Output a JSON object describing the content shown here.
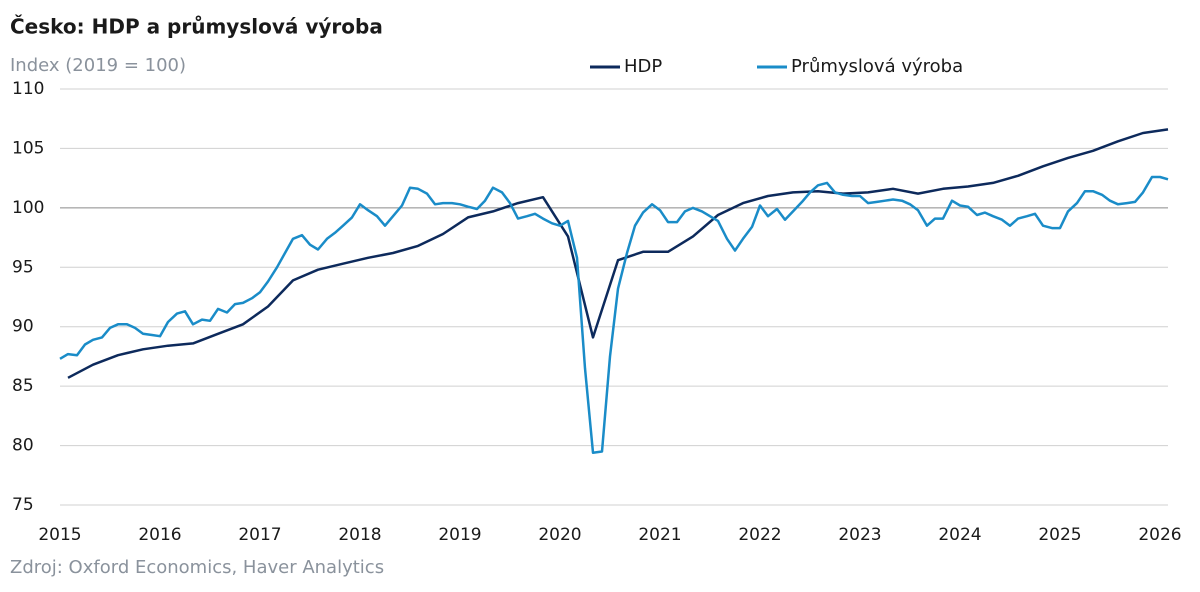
{
  "chart_data": {
    "type": "line",
    "title": "Česko: HDP a průmyslová výroba",
    "subtitle": "Index (2019 = 100)",
    "source": "Zdroj: Oxford Economics, Haver Analytics",
    "xlim": [
      2015,
      2026.08
    ],
    "xticks": [
      2015,
      2016,
      2017,
      2018,
      2019,
      2020,
      2021,
      2022,
      2023,
      2024,
      2025,
      2026
    ],
    "ylim": [
      75,
      110
    ],
    "yticks": [
      75,
      80,
      85,
      90,
      95,
      100,
      105,
      110
    ],
    "grid": true,
    "legend": "top",
    "series": [
      {
        "name": "HDP",
        "color": "#0d2a5c",
        "x": [
          2015.08,
          2015.33,
          2015.58,
          2015.83,
          2016.08,
          2016.33,
          2016.58,
          2016.83,
          2017.08,
          2017.33,
          2017.58,
          2017.83,
          2018.08,
          2018.33,
          2018.58,
          2018.83,
          2019.08,
          2019.33,
          2019.58,
          2019.83,
          2020.08,
          2020.33,
          2020.58,
          2020.83,
          2021.08,
          2021.33,
          2021.58,
          2021.83,
          2022.08,
          2022.33,
          2022.58,
          2022.83,
          2023.08,
          2023.33,
          2023.58,
          2023.83,
          2024.08,
          2024.33,
          2024.58,
          2024.83,
          2025.08,
          2025.33,
          2025.58,
          2025.83,
          2026.08
        ],
        "values": [
          85.7,
          86.8,
          87.6,
          88.1,
          88.4,
          88.6,
          89.4,
          90.2,
          91.7,
          93.9,
          94.8,
          95.3,
          95.8,
          96.2,
          96.8,
          97.8,
          99.2,
          99.7,
          100.4,
          100.9,
          97.6,
          89.1,
          95.6,
          96.3,
          96.3,
          97.6,
          99.4,
          100.4,
          101.0,
          101.3,
          101.4,
          101.2,
          101.3,
          101.6,
          101.2,
          101.6,
          101.8,
          102.1,
          102.7,
          103.5,
          104.2,
          104.8,
          105.6,
          106.3,
          106.6
        ]
      },
      {
        "name": "Průmyslová výroba",
        "color": "#1a8cc8",
        "x": [
          2015,
          2015.08,
          2015.17,
          2015.25,
          2015.33,
          2015.42,
          2015.5,
          2015.58,
          2015.67,
          2015.75,
          2015.83,
          2015.92,
          2016,
          2016.08,
          2016.17,
          2016.25,
          2016.33,
          2016.42,
          2016.5,
          2016.58,
          2016.67,
          2016.75,
          2016.83,
          2016.92,
          2017,
          2017.08,
          2017.17,
          2017.25,
          2017.33,
          2017.42,
          2017.5,
          2017.58,
          2017.67,
          2017.75,
          2017.83,
          2017.92,
          2018,
          2018.08,
          2018.17,
          2018.25,
          2018.33,
          2018.42,
          2018.5,
          2018.58,
          2018.67,
          2018.75,
          2018.83,
          2018.92,
          2019,
          2019.08,
          2019.17,
          2019.25,
          2019.33,
          2019.42,
          2019.5,
          2019.58,
          2019.67,
          2019.75,
          2019.83,
          2019.92,
          2020,
          2020.08,
          2020.17,
          2020.25,
          2020.33,
          2020.42,
          2020.5,
          2020.58,
          2020.67,
          2020.75,
          2020.83,
          2020.92,
          2021,
          2021.08,
          2021.17,
          2021.25,
          2021.33,
          2021.42,
          2021.5,
          2021.58,
          2021.67,
          2021.75,
          2021.83,
          2021.92,
          2022,
          2022.08,
          2022.17,
          2022.25,
          2022.33,
          2022.42,
          2022.5,
          2022.58,
          2022.67,
          2022.75,
          2022.83,
          2022.92,
          2023,
          2023.08,
          2023.17,
          2023.25,
          2023.33,
          2023.42,
          2023.5,
          2023.58,
          2023.67,
          2023.75,
          2023.83,
          2023.92,
          2024,
          2024.08,
          2024.17,
          2024.25,
          2024.33,
          2024.42,
          2024.5,
          2024.58,
          2024.67,
          2024.75,
          2024.83,
          2024.92,
          2025,
          2025.08,
          2025.17,
          2025.25,
          2025.33,
          2025.42,
          2025.5,
          2025.58,
          2025.67,
          2025.75,
          2025.83,
          2025.92,
          2026,
          2026.08
        ],
        "values": [
          87.3,
          87.7,
          87.6,
          88.5,
          88.9,
          89.1,
          89.9,
          90.2,
          90.2,
          89.9,
          89.4,
          89.3,
          89.2,
          90.4,
          91.1,
          91.3,
          90.2,
          90.6,
          90.5,
          91.5,
          91.2,
          91.9,
          92.0,
          92.4,
          92.9,
          93.8,
          95.0,
          96.2,
          97.4,
          97.7,
          96.9,
          96.5,
          97.4,
          97.9,
          98.5,
          99.2,
          100.3,
          99.8,
          99.3,
          98.5,
          99.3,
          100.2,
          101.7,
          101.6,
          101.2,
          100.3,
          100.4,
          100.4,
          100.3,
          100.1,
          99.9,
          100.6,
          101.7,
          101.3,
          100.4,
          99.1,
          99.3,
          99.5,
          99.1,
          98.7,
          98.5,
          98.9,
          95.8,
          86.5,
          79.4,
          79.5,
          87.5,
          93.2,
          96.2,
          98.5,
          99.6,
          100.3,
          99.8,
          98.8,
          98.8,
          99.7,
          100.0,
          99.7,
          99.3,
          98.9,
          97.4,
          96.4,
          97.4,
          98.4,
          100.2,
          99.3,
          99.9,
          99.0,
          99.7,
          100.5,
          101.3,
          101.9,
          102.1,
          101.3,
          101.1,
          101.0,
          101.0,
          100.4,
          100.5,
          100.6,
          100.7,
          100.6,
          100.3,
          99.8,
          98.5,
          99.1,
          99.1,
          100.6,
          100.2,
          100.1,
          99.4,
          99.6,
          99.3,
          99.0,
          98.5,
          99.1,
          99.3,
          99.5,
          98.5,
          98.3,
          98.3,
          99.7,
          100.4,
          101.4,
          101.4,
          101.1,
          100.6,
          100.3,
          100.4,
          100.5,
          101.3,
          102.6,
          102.6,
          102.4
        ]
      }
    ]
  }
}
